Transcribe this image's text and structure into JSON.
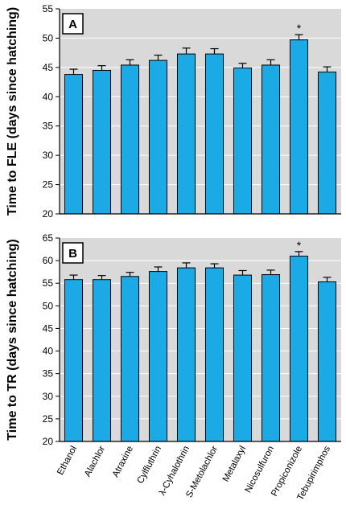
{
  "chart_data": [
    {
      "type": "bar",
      "panel_label": "A",
      "ylabel": "Time to FLE (days since hatching)",
      "ylim": [
        20,
        55
      ],
      "yticks": [
        20,
        25,
        30,
        35,
        40,
        45,
        50,
        55
      ],
      "grid": true,
      "categories": [
        "Ethanol",
        "Alachlor",
        "Atraxine",
        "Cylfluthrin",
        "λ-Cyhalothrin",
        "S-Metolachlor",
        "Metalaxyl",
        "Nicosulfuron",
        "Propiconizole",
        "Tebupirimphos"
      ],
      "values": [
        43.8,
        44.5,
        45.4,
        46.2,
        47.3,
        47.3,
        44.9,
        45.4,
        49.7,
        44.2
      ],
      "errors": [
        0.9,
        0.8,
        0.9,
        0.9,
        1.0,
        0.9,
        0.8,
        0.9,
        0.9,
        0.9
      ],
      "annotations": [
        {
          "category": "Propiconizole",
          "text": "*"
        }
      ]
    },
    {
      "type": "bar",
      "panel_label": "B",
      "ylabel": "Time to TR (days since hatching)",
      "ylim": [
        20,
        65
      ],
      "yticks": [
        20,
        25,
        30,
        35,
        40,
        45,
        50,
        55,
        60,
        65
      ],
      "grid": true,
      "categories": [
        "Ethanol",
        "Alachlor",
        "Atraxine",
        "Cylfluthrin",
        "λ-Cyhalothrin",
        "S-Metolachlor",
        "Metalaxyl",
        "Nicosulfuron",
        "Propiconizole",
        "Tebupirimphos"
      ],
      "values": [
        55.8,
        55.8,
        56.5,
        57.6,
        58.4,
        58.4,
        56.8,
        56.9,
        61.0,
        55.3
      ],
      "errors": [
        1.0,
        0.9,
        0.9,
        1.0,
        1.1,
        0.9,
        1.0,
        1.0,
        1.0,
        1.0
      ],
      "annotations": [
        {
          "category": "Propiconizole",
          "text": "*"
        }
      ]
    }
  ],
  "style": {
    "bar_color": "#1BAAE6",
    "bar_stroke": "#000000",
    "plot_background": "#D9D9D9",
    "grid_color": "#FFFFFF"
  }
}
